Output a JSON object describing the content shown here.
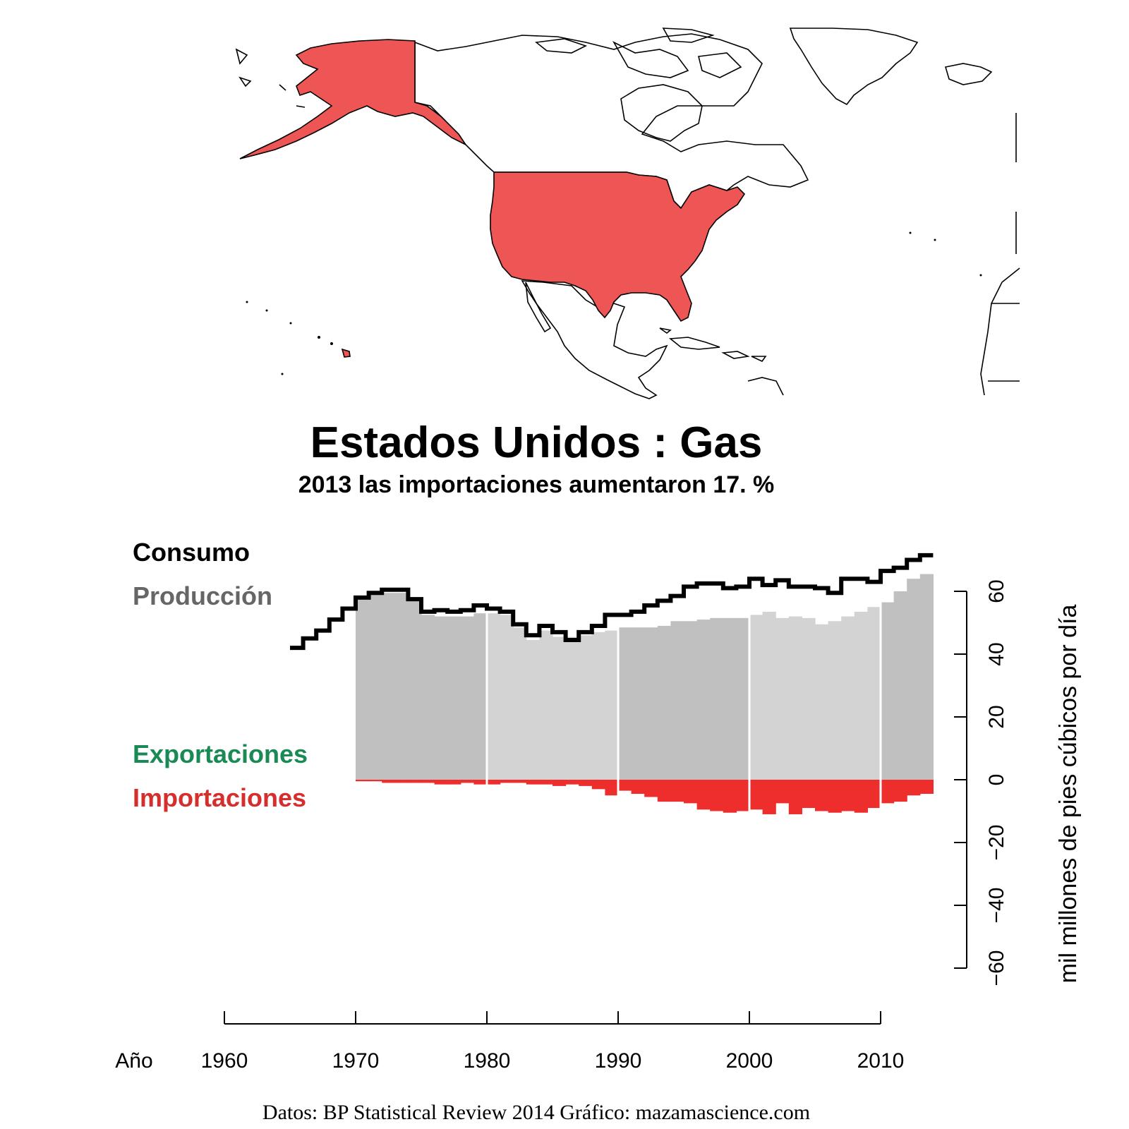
{
  "map": {
    "region_name": "Estados Unidos",
    "highlight_color": "#ee5555",
    "land_color": "#ffffff",
    "outline_color": "#000000"
  },
  "title": "Estados Unidos :  Gas",
  "subtitle": "2013 las importaciones aumentaron 17. %",
  "legend": {
    "consumo": "Consumo",
    "produccion": "Producción",
    "exportaciones": "Exportaciones",
    "importaciones": "Importaciones"
  },
  "colors": {
    "consumo": "#000000",
    "produccion": "#666666",
    "produccion_fill_dark": "#c0c0c0",
    "produccion_fill_light": "#d3d3d3",
    "exportaciones": "#1a8a55",
    "importaciones": "#ee2d2d"
  },
  "footer": "Datos: BP Statistical Review 2014   Gráfico: mazamascience.com",
  "chart_data": {
    "type": "area",
    "x_label": "Año",
    "y_label": "mil millones de pies cúbicos por día",
    "x_ticks": [
      1960,
      1970,
      1980,
      1990,
      2000,
      2010
    ],
    "y_ticks": [
      -60,
      -40,
      -20,
      0,
      20,
      40,
      60
    ],
    "xlim": [
      1960,
      2014
    ],
    "ylim": [
      -60,
      60
    ],
    "series": [
      {
        "name": "Consumo",
        "style": "step-line",
        "x": [
          1965,
          1966,
          1967,
          1968,
          1969,
          1970,
          1971,
          1972,
          1973,
          1974,
          1975,
          1976,
          1977,
          1978,
          1979,
          1980,
          1981,
          1982,
          1983,
          1984,
          1985,
          1986,
          1987,
          1988,
          1989,
          1990,
          1991,
          1992,
          1993,
          1994,
          1995,
          1996,
          1997,
          1998,
          1999,
          2000,
          2001,
          2002,
          2003,
          2004,
          2005,
          2006,
          2007,
          2008,
          2009,
          2010,
          2011,
          2012,
          2013
        ],
        "values": [
          42,
          45,
          47.5,
          51,
          54.5,
          58,
          59.5,
          60.5,
          60.5,
          57.5,
          53.5,
          54,
          53.5,
          54,
          55.5,
          54.5,
          53.5,
          49.5,
          46,
          49,
          47,
          44.5,
          47,
          49,
          52.5,
          52.5,
          53.5,
          55.5,
          57,
          58.5,
          61.5,
          62.5,
          62.5,
          61,
          61.5,
          64,
          62,
          63.5,
          61.5,
          61.5,
          61,
          59.5,
          64,
          64,
          63,
          66.5,
          67.5,
          70,
          71.5
        ]
      },
      {
        "name": "Producción",
        "style": "step-area",
        "x": [
          1970,
          1971,
          1972,
          1973,
          1974,
          1975,
          1976,
          1977,
          1978,
          1979,
          1980,
          1981,
          1982,
          1983,
          1984,
          1985,
          1986,
          1987,
          1988,
          1989,
          1990,
          1991,
          1992,
          1993,
          1994,
          1995,
          1996,
          1997,
          1998,
          1999,
          2000,
          2001,
          2002,
          2003,
          2004,
          2005,
          2006,
          2007,
          2008,
          2009,
          2010,
          2011,
          2012,
          2013
        ],
        "values": [
          58,
          59.5,
          59.5,
          59.5,
          57,
          52.5,
          52,
          52,
          52,
          53,
          53,
          52.5,
          48.5,
          44.5,
          47.5,
          45.5,
          45.5,
          46,
          47,
          47.5,
          48.5,
          48.5,
          48.5,
          49,
          50.5,
          50.5,
          51,
          51.5,
          51.5,
          51.5,
          52.5,
          53.5,
          51.5,
          52,
          51.5,
          49.5,
          50.5,
          52,
          53.5,
          55,
          56.5,
          60,
          64,
          65.5
        ]
      },
      {
        "name": "Importaciones",
        "style": "step-area-negative",
        "x": [
          1970,
          1971,
          1972,
          1973,
          1974,
          1975,
          1976,
          1977,
          1978,
          1979,
          1980,
          1981,
          1982,
          1983,
          1984,
          1985,
          1986,
          1987,
          1988,
          1989,
          1990,
          1991,
          1992,
          1993,
          1994,
          1995,
          1996,
          1997,
          1998,
          1999,
          2000,
          2001,
          2002,
          2003,
          2004,
          2005,
          2006,
          2007,
          2008,
          2009,
          2010,
          2011,
          2012,
          2013
        ],
        "values": [
          -0.5,
          -0.5,
          -1,
          -1,
          -1,
          -1,
          -1.5,
          -1.5,
          -1,
          -1.5,
          -1.5,
          -1,
          -1,
          -1.5,
          -1.5,
          -2,
          -1.5,
          -2,
          -3,
          -5,
          -3.5,
          -4.5,
          -5.5,
          -7,
          -7,
          -7.5,
          -9.5,
          -10,
          -10.5,
          -10,
          -9.5,
          -11,
          -7.5,
          -11,
          -9,
          -10,
          -10.5,
          -10,
          -10.5,
          -9,
          -7.5,
          -7,
          -5,
          -4.5
        ]
      },
      {
        "name": "Exportaciones",
        "style": "step-area",
        "x": [],
        "values": []
      }
    ]
  }
}
